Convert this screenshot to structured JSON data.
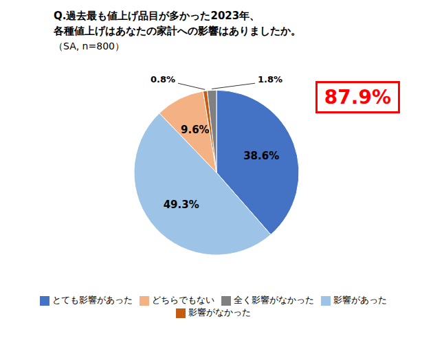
{
  "chart_data": {
    "type": "pie",
    "title": [
      "Q.過去最も値上げ品目が多かった2023年、",
      "各種値上げはあなたの家計への影響はありましたか。"
    ],
    "subtitle": "（SA, n=800）",
    "categories": [
      "とても影響があった",
      "影響があった",
      "どちらでもない",
      "影響がなかった",
      "全く影響がなかった"
    ],
    "values": [
      38.6,
      49.3,
      9.6,
      0.8,
      1.8
    ],
    "value_labels": [
      "38.6%",
      "49.3%",
      "9.6%",
      "0.8%",
      "1.8%"
    ],
    "colors": [
      "#4472C4",
      "#9DC3E6",
      "#F4B183",
      "#C55A11",
      "#808080"
    ],
    "data_labels": true,
    "legend": "bottom",
    "annotations": [
      {
        "text": "87.9%",
        "color": "#FF0000"
      }
    ]
  }
}
